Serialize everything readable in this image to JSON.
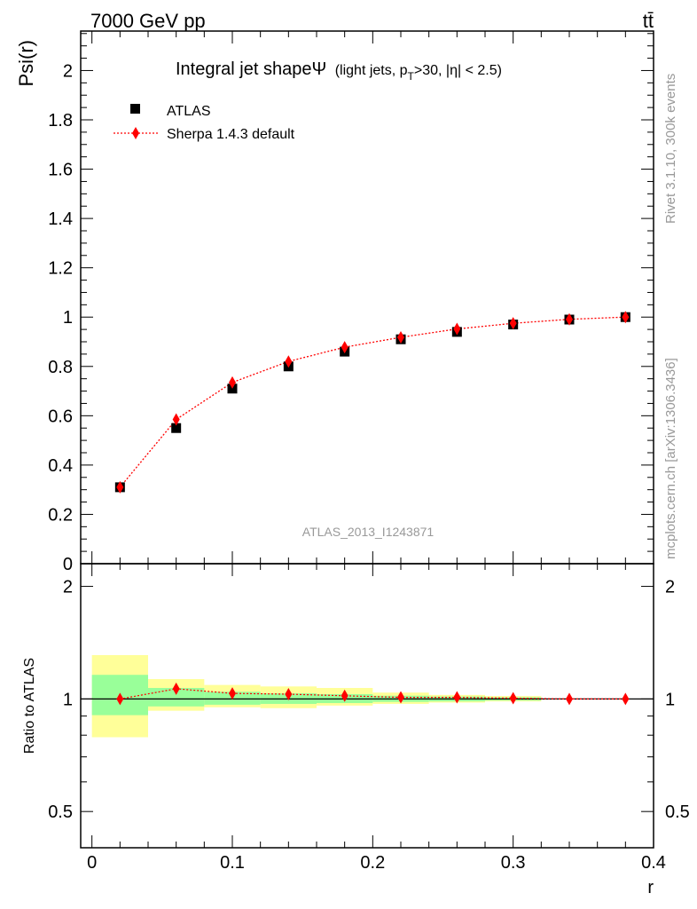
{
  "header": {
    "left": "7000 GeV pp",
    "right": "tt̄"
  },
  "side_labels": {
    "rivet": "Rivet 3.1.10,  300k events",
    "mcplots": "mcplots.cern.ch [arXiv:1306.3436]"
  },
  "watermark": "ATLAS_2013_I1243871",
  "colors": {
    "data": "#000000",
    "mc": "#ff0000",
    "band_inner": "#99ff99",
    "band_outer": "#ffff99"
  },
  "chart_data": [
    {
      "type": "scatter",
      "title": "Integral jet shape",
      "title_symbol": "Ψ",
      "title_suffix": "(light jets, p",
      "title_sub": "T",
      "title_end": ">30, |η| < 2.5)",
      "ylabel": "Psi(r)",
      "xlabel": "r",
      "xlim": [
        -0.008,
        0.4
      ],
      "ylim": [
        0,
        2.16
      ],
      "yticks": [
        0,
        0.2,
        0.4,
        0.6,
        0.8,
        1,
        1.2,
        1.4,
        1.6,
        1.8,
        2
      ],
      "ytick_labels": [
        "0",
        "0.2",
        "0.4",
        "0.6",
        "0.8",
        "1",
        "1.2",
        "1.4",
        "1.6",
        "1.8",
        "2"
      ],
      "x": [
        0.02,
        0.06,
        0.1,
        0.14,
        0.18,
        0.22,
        0.26,
        0.3,
        0.34,
        0.38
      ],
      "series": [
        {
          "name": "ATLAS",
          "values": [
            0.31,
            0.55,
            0.71,
            0.8,
            0.86,
            0.91,
            0.94,
            0.97,
            0.99,
            1.0
          ]
        },
        {
          "name": "Sherpa 1.4.3 default",
          "values": [
            0.31,
            0.585,
            0.735,
            0.82,
            0.878,
            0.918,
            0.952,
            0.975,
            0.991,
            1.0
          ]
        }
      ]
    },
    {
      "type": "ratio",
      "ylabel": "Ratio to ATLAS",
      "xlabel": "r",
      "xlim": [
        -0.008,
        0.4
      ],
      "ylim": [
        0.4,
        2.3
      ],
      "yscale": "log",
      "yticks": [
        0.5,
        1,
        2
      ],
      "ytick_labels": [
        "0.5",
        "1",
        "2"
      ],
      "xticks": [
        0,
        0.1,
        0.2,
        0.3,
        0.4
      ],
      "xtick_labels": [
        "0",
        "0.1",
        "0.2",
        "0.3",
        "0.4"
      ],
      "bins": [
        [
          0,
          0.04
        ],
        [
          0.04,
          0.08
        ],
        [
          0.08,
          0.12
        ],
        [
          0.12,
          0.16
        ],
        [
          0.16,
          0.2
        ],
        [
          0.2,
          0.24
        ],
        [
          0.24,
          0.28
        ],
        [
          0.28,
          0.32
        ],
        [
          0.32,
          0.36
        ],
        [
          0.36,
          0.4
        ]
      ],
      "band_inner": [
        [
          0.905,
          1.16
        ],
        [
          0.955,
          1.07
        ],
        [
          0.965,
          1.045
        ],
        [
          0.97,
          1.035
        ],
        [
          0.975,
          1.03
        ],
        [
          0.982,
          1.02
        ],
        [
          0.985,
          1.015
        ],
        [
          0.99,
          1.01
        ],
        [
          1.0,
          1.0
        ],
        [
          1.0,
          1.0
        ]
      ],
      "band_outer": [
        [
          0.79,
          1.31
        ],
        [
          0.93,
          1.13
        ],
        [
          0.95,
          1.09
        ],
        [
          0.945,
          1.08
        ],
        [
          0.96,
          1.07
        ],
        [
          0.97,
          1.04
        ],
        [
          0.978,
          1.025
        ],
        [
          0.985,
          1.018
        ],
        [
          1.0,
          1.0
        ],
        [
          1.0,
          1.0
        ]
      ],
      "x": [
        0.02,
        0.06,
        0.1,
        0.14,
        0.18,
        0.22,
        0.26,
        0.3,
        0.34,
        0.38
      ],
      "series": [
        {
          "name": "Sherpa 1.4.3 default",
          "values": [
            1.0,
            1.065,
            1.035,
            1.03,
            1.02,
            1.01,
            1.01,
            1.005,
            1.0,
            1.0
          ]
        }
      ]
    }
  ]
}
